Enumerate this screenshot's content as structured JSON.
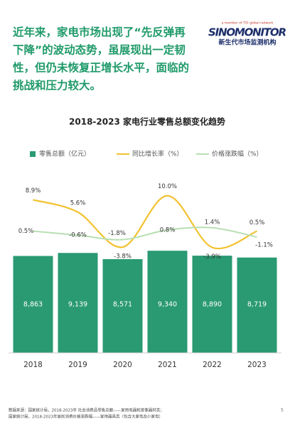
{
  "header": {
    "lines": [
      "近年来，家电市场出现了“先反弹再",
      "下降”的波动态势，虽展现出一定韧",
      "性，但仍未恢复正增长水平，面临的",
      "挑战和压力较大。"
    ],
    "logo": {
      "tagline": "a member of TGI global network",
      "name": "SINOMONITOR",
      "subtitle": "新生代市场监测机构"
    }
  },
  "chart_data": {
    "type": "bar-line",
    "title": "2018-2023 家电行业零售总额变化趋势",
    "categories": [
      "2018",
      "2019",
      "2020",
      "2021",
      "2022",
      "2023"
    ],
    "series": [
      {
        "name": "零售总额（亿元）",
        "color": "#2a9a72",
        "type": "bar",
        "values": [
          8863,
          9139,
          8571,
          9340,
          8890,
          8719
        ],
        "value_labels": [
          "8,863",
          "9,139",
          "8,571",
          "9,340",
          "8,890",
          "8,719"
        ]
      },
      {
        "name": "同比增长率（%）",
        "color": "#f2c230",
        "type": "line",
        "axis": "y2",
        "values": [
          8.9,
          5.6,
          -3.8,
          10.0,
          -3.9,
          0.5
        ],
        "value_labels": [
          "8.9%",
          "5.6%",
          "-3.8%",
          "10.0%",
          "-3.9%",
          "0.5%"
        ]
      },
      {
        "name": "价格涨跌幅（%）",
        "color": "#b8dfb2",
        "type": "line",
        "axis": "y2",
        "values": [
          0.5,
          -0.6,
          -1.8,
          0.8,
          1.4,
          -1.1
        ],
        "value_labels": [
          "0.5%",
          "-0.6%",
          "-1.8%",
          "0.8%",
          "1.4%",
          "-1.1%"
        ]
      }
    ],
    "ylim": [
      0,
      10000
    ],
    "y2lim": [
      -8,
      13
    ]
  },
  "footer": {
    "source": [
      "数据来源：国家统计局，2018-2023年 社会消费品零售总额——家用电器和音像器材类；",
      "国家统计局，2018-2023年居民消费价格涨跌幅——家用器具类（包含大家电及小家电）"
    ],
    "page": "5"
  }
}
